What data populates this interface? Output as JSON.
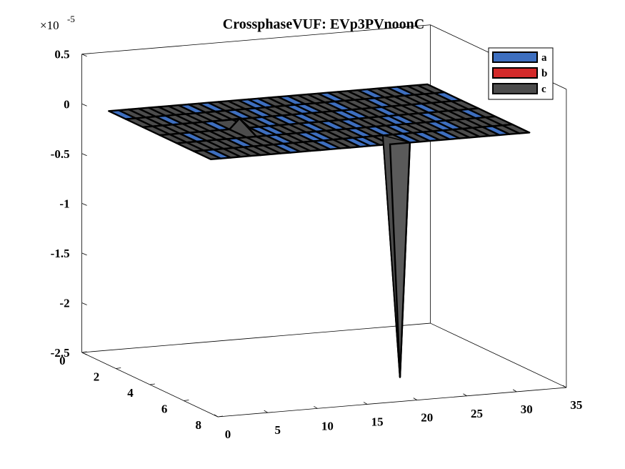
{
  "chart_data": {
    "type": "surface3d",
    "title": "CrossphaseVUF: EVp3PVnoonC",
    "z_exponent_base": "×10",
    "z_exponent_power": "-5",
    "z_ticks": [
      "0.5",
      "0",
      "-0.5",
      "-1",
      "-1.5",
      "-2",
      "-2.5"
    ],
    "y_ticks": [
      "0",
      "2",
      "4",
      "6",
      "8"
    ],
    "x_ticks": [
      "0",
      "5",
      "10",
      "15",
      "20",
      "25",
      "30",
      "35"
    ],
    "xlim": [
      0,
      35
    ],
    "ylim": [
      0,
      8
    ],
    "zlim": [
      -2.5,
      0.5
    ],
    "x_range": [
      1,
      33
    ],
    "y_range": [
      1,
      7
    ],
    "base_value": 0,
    "spikes": [
      {
        "x": 20,
        "y": 7,
        "z": -2.35,
        "series": "c"
      },
      {
        "x": 9,
        "y": 4,
        "z": 0.1,
        "series": "c"
      }
    ],
    "legend": {
      "position": "top-right",
      "entries": [
        {
          "label": "a",
          "color": "#3E6FC0"
        },
        {
          "label": "b",
          "color": "#D42A2A"
        },
        {
          "label": "c",
          "color": "#4C4C4C"
        }
      ]
    },
    "series": [
      {
        "name": "a",
        "color": "#3E6FC0"
      },
      {
        "name": "b",
        "color": "#D42A2A"
      },
      {
        "name": "c",
        "color": "#4C4C4C"
      }
    ]
  }
}
